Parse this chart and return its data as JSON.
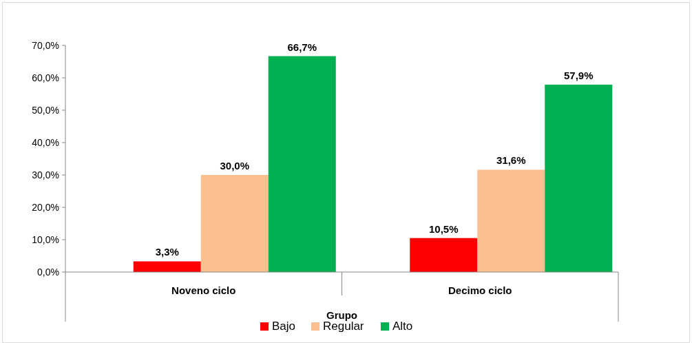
{
  "chart_data": {
    "type": "bar",
    "xlabel": "Grupo",
    "categories": [
      "Noveno ciclo",
      "Decimo ciclo"
    ],
    "series": [
      {
        "name": "Bajo",
        "color": "#ff0000",
        "values": [
          3.3,
          10.5
        ],
        "value_labels": [
          "3,3%",
          "10,5%"
        ]
      },
      {
        "name": "Regular",
        "color": "#fac090",
        "values": [
          30.0,
          31.6
        ],
        "value_labels": [
          "30,0%",
          "31,6%"
        ]
      },
      {
        "name": "Alto",
        "color": "#00b050",
        "values": [
          66.7,
          57.9
        ],
        "value_labels": [
          "66,7%",
          "57,9%"
        ]
      }
    ],
    "ylim": [
      0,
      70
    ],
    "yticks": [
      {
        "value": 0,
        "label": "0,0%"
      },
      {
        "value": 10,
        "label": "10,0%"
      },
      {
        "value": 20,
        "label": "20,0%"
      },
      {
        "value": 30,
        "label": "30,0%"
      },
      {
        "value": 40,
        "label": "40,0%"
      },
      {
        "value": 50,
        "label": "50,0%"
      },
      {
        "value": 60,
        "label": "60,0%"
      },
      {
        "value": 70,
        "label": "70,0%"
      }
    ],
    "grid": false,
    "legend": "bottom"
  }
}
